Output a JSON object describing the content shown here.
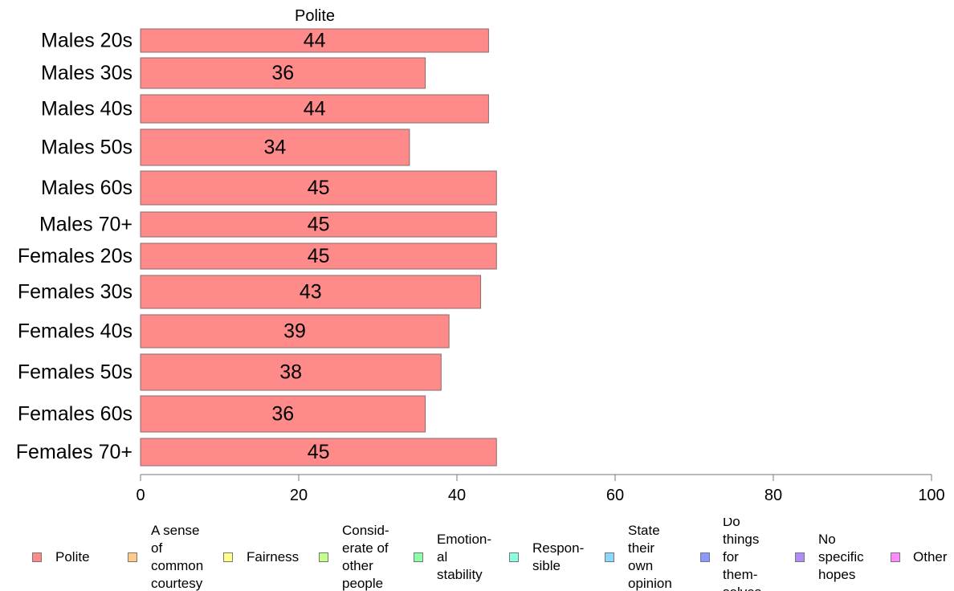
{
  "chart_data": {
    "type": "bar",
    "orientation": "horizontal",
    "title": "Polite",
    "categories": [
      "Males 20s",
      "Males 30s",
      "Males 40s",
      "Males 50s",
      "Males 60s",
      "Males 70+",
      "Females 20s",
      "Females 30s",
      "Females 40s",
      "Females 50s",
      "Females 60s",
      "Females 70+"
    ],
    "series": [
      {
        "name": "Polite",
        "color": "#ff8a8a",
        "values": [
          44,
          36,
          44,
          34,
          45,
          45,
          45,
          43,
          39,
          38,
          36,
          45
        ]
      }
    ],
    "xlim": [
      0,
      100
    ],
    "xticks": [
      0,
      20,
      40,
      60,
      80,
      100
    ],
    "grid": false,
    "legend_position": "bottom"
  },
  "legend": [
    {
      "label": "Polite",
      "color": "#ff8a8a"
    },
    {
      "label": "A sense\nof\ncommon\ncourtesy",
      "color": "#ffc98a"
    },
    {
      "label": "Fairness",
      "color": "#ffff8a"
    },
    {
      "label": "Consid-\nerate of\nother\npeople",
      "color": "#c4ff8a"
    },
    {
      "label": "Emotion-\nal\nstability",
      "color": "#8affa4"
    },
    {
      "label": "Respon-\nsible",
      "color": "#8affe4"
    },
    {
      "label": "State\ntheir\nown\nopinion",
      "color": "#8ad8ff"
    },
    {
      "label": "Do\nthings\nfor\nthem-\nselves",
      "color": "#8a98ff"
    },
    {
      "label": "No\nspecific\nhopes",
      "color": "#b08aff"
    },
    {
      "label": "Other",
      "color": "#ff8aff"
    }
  ]
}
